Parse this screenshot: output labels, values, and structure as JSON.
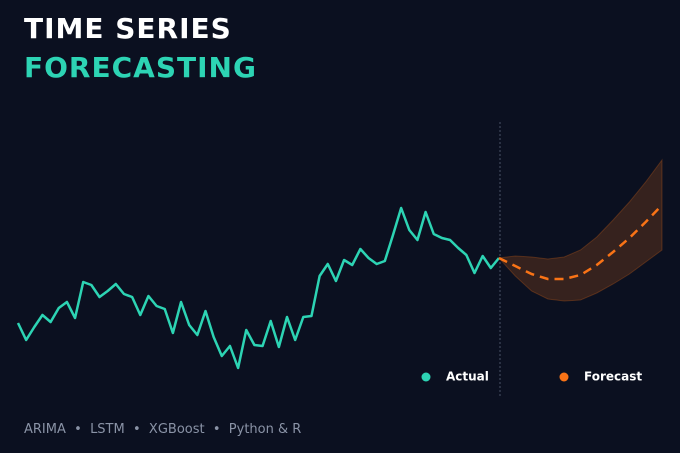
{
  "chart_data": {
    "type": "line",
    "title": "TIME SERIES",
    "subtitle": "FORECASTING",
    "footer": "ARIMA  •  LSTM  •  XGBoost  •  Python & R",
    "xlim": [
      0,
      79
    ],
    "ylim": [
      0,
      300
    ],
    "series": [
      {
        "name": "Actual",
        "color": "#2dd4b4",
        "x": [
          0,
          1,
          2,
          3,
          4,
          5,
          6,
          7,
          8,
          9,
          10,
          11,
          12,
          13,
          14,
          15,
          16,
          17,
          18,
          19,
          20,
          21,
          22,
          23,
          24,
          25,
          26,
          27,
          28,
          29,
          30,
          31,
          32,
          33,
          34,
          35,
          36,
          37,
          38,
          39,
          40,
          41,
          42,
          43,
          44,
          45,
          46,
          47,
          48,
          49,
          50,
          51,
          52,
          53,
          54,
          55,
          56,
          57,
          58,
          59
        ],
        "values": [
          77,
          60,
          73,
          85,
          78,
          92,
          98,
          82,
          118,
          115,
          103,
          109,
          116,
          106,
          103,
          85,
          104,
          94,
          91,
          67,
          98,
          75,
          65,
          89,
          63,
          44,
          54,
          32,
          70,
          55,
          54,
          79,
          53,
          83,
          60,
          83,
          84,
          124,
          136,
          119,
          140,
          135,
          151,
          142,
          136,
          139,
          165,
          192,
          170,
          160,
          188,
          166,
          162,
          160,
          152,
          145,
          127,
          144,
          132,
          142
        ]
      },
      {
        "name": "Forecast",
        "color": "#f97316",
        "x": [
          59,
          61,
          63,
          65,
          67,
          69,
          71,
          73,
          75,
          77,
          79
        ],
        "values": [
          142,
          134,
          126,
          121,
          121,
          125,
          135,
          148,
          162,
          178,
          195
        ],
        "upper": [
          142,
          144,
          143,
          141,
          143,
          150,
          163,
          180,
          198,
          218,
          240
        ],
        "lower": [
          142,
          124,
          109,
          101,
          99,
          100,
          107,
          116,
          126,
          138,
          150
        ]
      }
    ]
  }
}
